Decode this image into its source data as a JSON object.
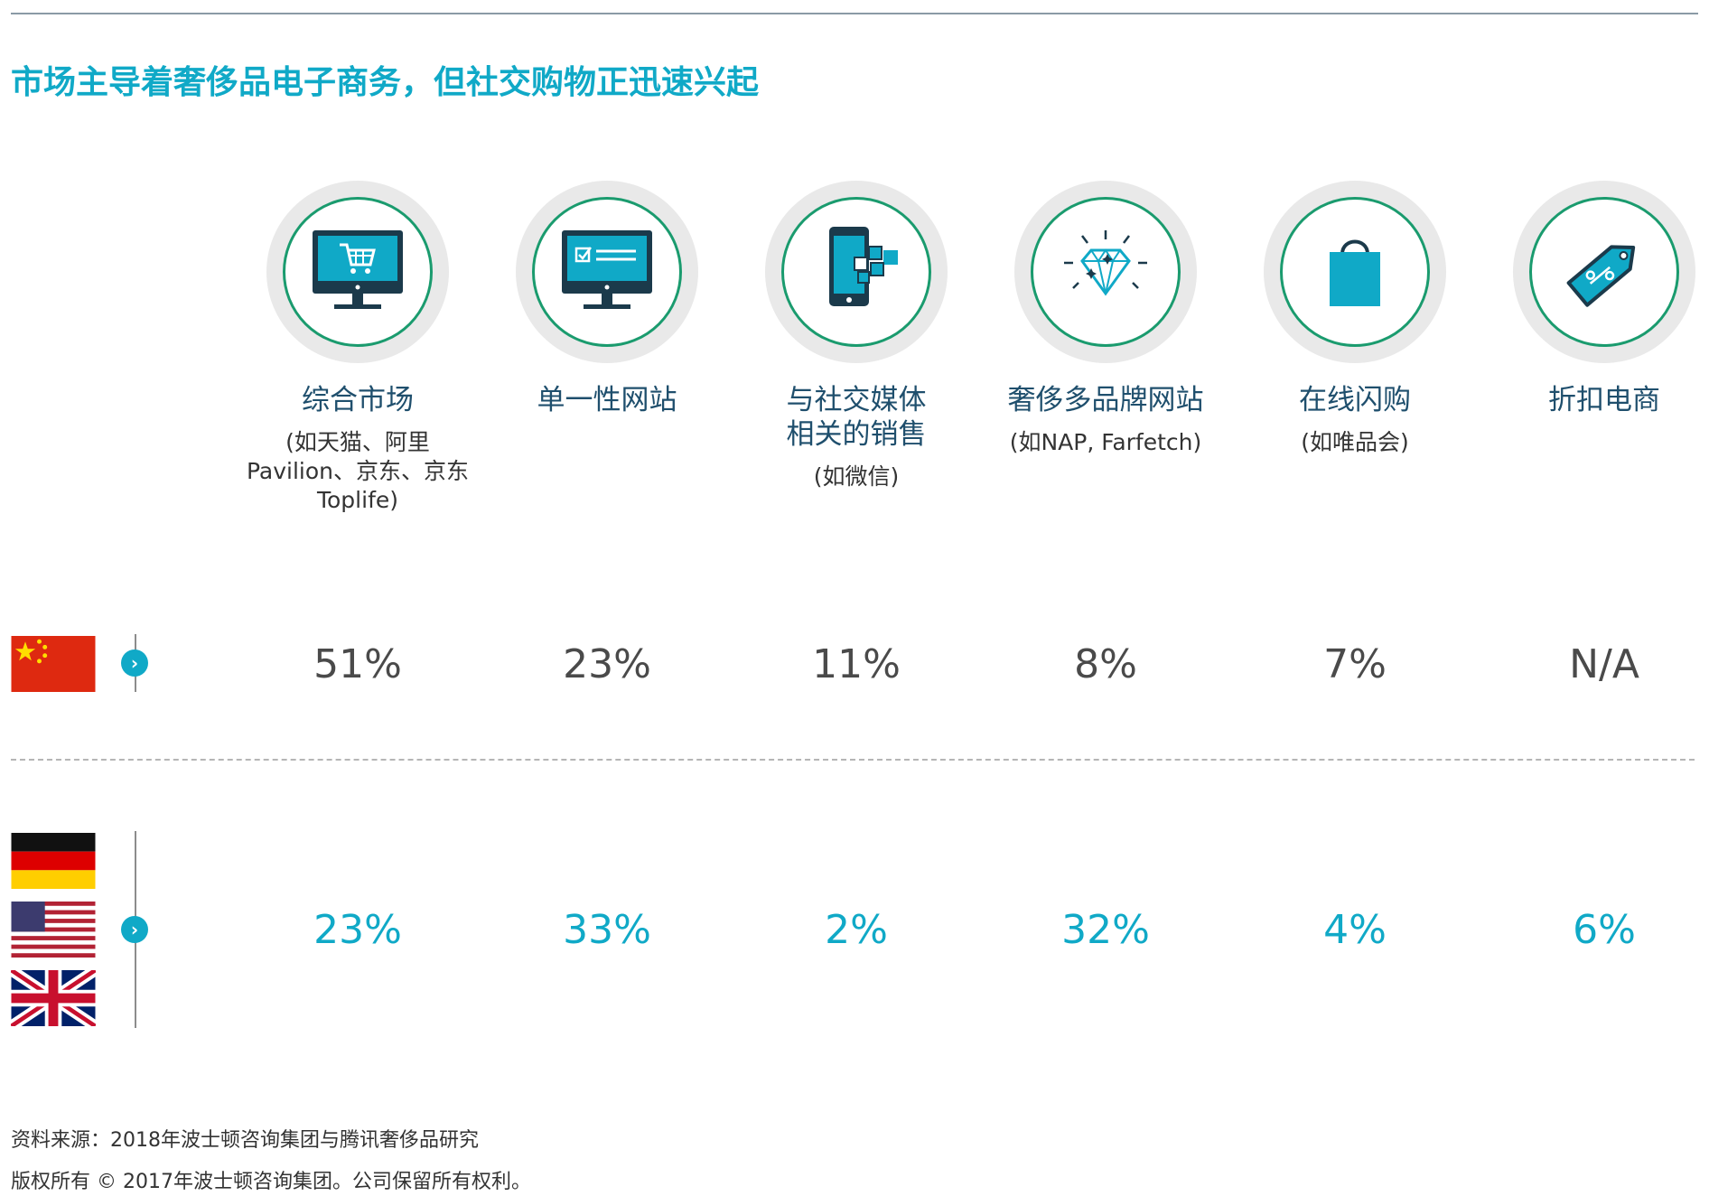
{
  "title": "市场主导着奢侈品电子商务，但社交购物正迅速兴起",
  "chart_data": {
    "type": "table",
    "categories": [
      {
        "label": "综合市场",
        "sub": "(如天猫、阿里Pavilion、京东、京东Toplife)",
        "icon": "shopping-cart-monitor-icon"
      },
      {
        "label": "单一性网站",
        "sub": "",
        "icon": "website-monitor-icon"
      },
      {
        "label": "与社交媒体相关的销售",
        "sub": "(如微信)",
        "icon": "smartphone-social-icon"
      },
      {
        "label": "奢侈多品牌网站",
        "sub": "(如NAP, Farfetch)",
        "icon": "diamond-icon"
      },
      {
        "label": "在线闪购",
        "sub": "(如唯品会)",
        "icon": "shopping-bag-icon"
      },
      {
        "label": "折扣电商",
        "sub": "",
        "icon": "discount-tag-icon"
      }
    ],
    "series": [
      {
        "flags": [
          "china-flag-icon"
        ],
        "values": [
          "51%",
          "23%",
          "11%",
          "8%",
          "7%",
          "N/A"
        ],
        "color": "#4a4a4a"
      },
      {
        "flags": [
          "germany-flag-icon",
          "usa-flag-icon",
          "uk-flag-icon"
        ],
        "values": [
          "23%",
          "33%",
          "2%",
          "32%",
          "4%",
          "6%"
        ],
        "color": "#10a9c7"
      }
    ]
  },
  "footer": {
    "source": "资料来源：2018年波士顿咨询集团与腾讯奢侈品研究",
    "copyright": "版权所有 © 2017年波士顿咨询集团。公司保留所有权利。"
  },
  "colors": {
    "accent": "#10a9c7",
    "ring": "#1a9b6e",
    "label": "#1f4f6d",
    "icon_fill": "#10a9c7",
    "icon_stroke": "#1b3a4b"
  }
}
